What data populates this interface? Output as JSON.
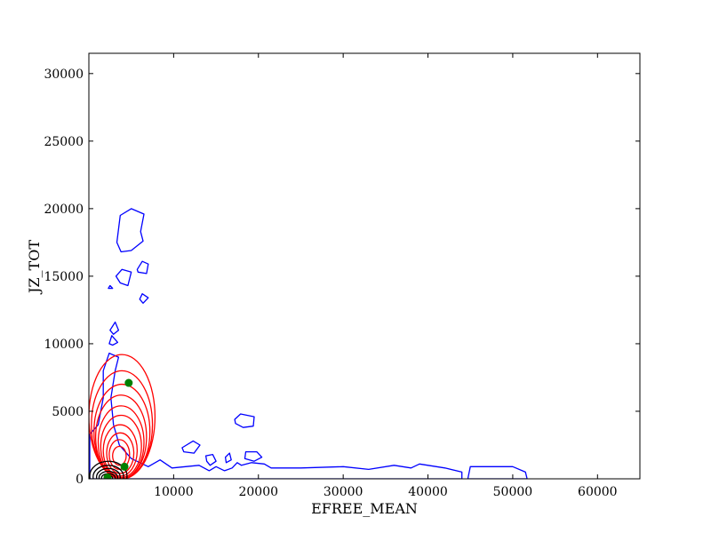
{
  "chart_data": {
    "type": "contour",
    "xlabel": "EFREE_MEAN",
    "ylabel": "JZ_TOT",
    "xlim": [
      0,
      65000
    ],
    "ylim": [
      0,
      31500
    ],
    "xticks": [
      10000,
      20000,
      30000,
      40000,
      50000,
      60000
    ],
    "yticks": [
      0,
      5000,
      10000,
      15000,
      20000,
      25000,
      30000
    ],
    "grid": false,
    "colors": {
      "blue": "#0000ff",
      "red": "#ff0000",
      "black": "#000000",
      "green": "#008000"
    },
    "series": [
      {
        "color": "#0000ff",
        "contours": [
          [
            [
              100,
              3300
            ],
            [
              1100,
              4000
            ],
            [
              1700,
              6000
            ],
            [
              1700,
              8000
            ],
            [
              2400,
              9300
            ],
            [
              3500,
              9000
            ],
            [
              3100,
              8000
            ],
            [
              2600,
              6000
            ],
            [
              2900,
              4000
            ],
            [
              3600,
              2500
            ],
            [
              5000,
              1500
            ],
            [
              7000,
              900
            ],
            [
              8400,
              1400
            ],
            [
              9800,
              800
            ],
            [
              13000,
              1000
            ],
            [
              14200,
              600
            ],
            [
              15000,
              900
            ],
            [
              16000,
              600
            ],
            [
              16900,
              800
            ],
            [
              17500,
              1200
            ],
            [
              18000,
              1000
            ],
            [
              19200,
              1200
            ],
            [
              20700,
              1100
            ],
            [
              21500,
              800
            ],
            [
              25000,
              800
            ],
            [
              30000,
              900
            ],
            [
              33000,
              700
            ],
            [
              36000,
              1000
            ],
            [
              38000,
              800
            ],
            [
              39000,
              1100
            ],
            [
              42000,
              800
            ],
            [
              44000,
              500
            ],
            [
              44000,
              0
            ],
            [
              100,
              0
            ],
            [
              100,
              3300
            ]
          ],
          [
            [
              3300,
              17500
            ],
            [
              3700,
              19500
            ],
            [
              5000,
              20000
            ],
            [
              6500,
              19600
            ],
            [
              6100,
              18300
            ],
            [
              6400,
              17600
            ],
            [
              5000,
              16900
            ],
            [
              3800,
              16800
            ],
            [
              3300,
              17500
            ]
          ],
          [
            [
              2300,
              14100
            ],
            [
              2500,
              14300
            ],
            [
              2800,
              14100
            ],
            [
              2300,
              14100
            ]
          ],
          [
            [
              3200,
              15000
            ],
            [
              3900,
              15500
            ],
            [
              5000,
              15300
            ],
            [
              4600,
              14300
            ],
            [
              3700,
              14500
            ],
            [
              3200,
              15000
            ]
          ],
          [
            [
              5700,
              15500
            ],
            [
              6300,
              16100
            ],
            [
              7000,
              15900
            ],
            [
              6800,
              15200
            ],
            [
              5800,
              15300
            ],
            [
              5700,
              15500
            ]
          ],
          [
            [
              6000,
              13300
            ],
            [
              6300,
              13700
            ],
            [
              7000,
              13400
            ],
            [
              6400,
              13000
            ],
            [
              6000,
              13300
            ]
          ],
          [
            [
              2500,
              11000
            ],
            [
              3100,
              11600
            ],
            [
              3500,
              11000
            ],
            [
              2900,
              10700
            ],
            [
              2500,
              11000
            ]
          ],
          [
            [
              2400,
              10000
            ],
            [
              2700,
              10600
            ],
            [
              3400,
              10100
            ],
            [
              2800,
              9900
            ],
            [
              2400,
              10000
            ]
          ],
          [
            [
              17200,
              4400
            ],
            [
              17900,
              4800
            ],
            [
              19500,
              4600
            ],
            [
              19400,
              3900
            ],
            [
              18200,
              3800
            ],
            [
              17300,
              4100
            ],
            [
              17200,
              4400
            ]
          ],
          [
            [
              11000,
              2300
            ],
            [
              12300,
              2800
            ],
            [
              13100,
              2500
            ],
            [
              12400,
              1900
            ],
            [
              11200,
              2000
            ],
            [
              11000,
              2300
            ]
          ],
          [
            [
              13800,
              1700
            ],
            [
              14600,
              1800
            ],
            [
              15000,
              1300
            ],
            [
              14300,
              1000
            ],
            [
              13900,
              1300
            ],
            [
              13800,
              1700
            ]
          ],
          [
            [
              16100,
              1600
            ],
            [
              16600,
              1900
            ],
            [
              16800,
              1400
            ],
            [
              16200,
              1200
            ],
            [
              16100,
              1600
            ]
          ],
          [
            [
              18500,
              2000
            ],
            [
              19800,
              2000
            ],
            [
              20400,
              1600
            ],
            [
              19500,
              1300
            ],
            [
              18400,
              1500
            ],
            [
              18500,
              2000
            ]
          ],
          [
            [
              45000,
              900
            ],
            [
              48000,
              900
            ],
            [
              50000,
              900
            ],
            [
              51500,
              500
            ],
            [
              51700,
              0
            ],
            [
              44700,
              0
            ],
            [
              45000,
              900
            ]
          ]
        ]
      },
      {
        "color": "#ff0000",
        "levels": [
          {
            "cx": 3900,
            "cy": 4600,
            "rx": 3900,
            "ry": 4600
          },
          {
            "cx": 3900,
            "cy": 4000,
            "rx": 3600,
            "ry": 4000
          },
          {
            "cx": 3900,
            "cy": 3500,
            "rx": 3300,
            "ry": 3500
          },
          {
            "cx": 3800,
            "cy": 3100,
            "rx": 3000,
            "ry": 3100
          },
          {
            "cx": 3800,
            "cy": 2700,
            "rx": 2700,
            "ry": 2700
          },
          {
            "cx": 3800,
            "cy": 2400,
            "rx": 2400,
            "ry": 2300
          },
          {
            "cx": 3700,
            "cy": 2100,
            "rx": 2000,
            "ry": 1900
          },
          {
            "cx": 3700,
            "cy": 1900,
            "rx": 1600,
            "ry": 1500
          },
          {
            "cx": 3600,
            "cy": 1800,
            "rx": 1200,
            "ry": 1100
          },
          {
            "cx": 3600,
            "cy": 1700,
            "rx": 800,
            "ry": 700
          }
        ]
      },
      {
        "color": "#000000",
        "levels": [
          {
            "cx": 2300,
            "cy": 200,
            "rx": 2200,
            "ry": 1100
          },
          {
            "cx": 2300,
            "cy": 150,
            "rx": 1800,
            "ry": 850
          },
          {
            "cx": 2300,
            "cy": 120,
            "rx": 1400,
            "ry": 650
          },
          {
            "cx": 2300,
            "cy": 100,
            "rx": 1100,
            "ry": 450
          },
          {
            "cx": 2300,
            "cy": 80,
            "rx": 800,
            "ry": 300
          },
          {
            "cx": 2300,
            "cy": 60,
            "rx": 500,
            "ry": 180
          }
        ]
      },
      {
        "color": "#008000",
        "points": [
          [
            4700,
            7100
          ],
          [
            4200,
            900
          ],
          [
            2200,
            100
          ]
        ]
      }
    ]
  }
}
